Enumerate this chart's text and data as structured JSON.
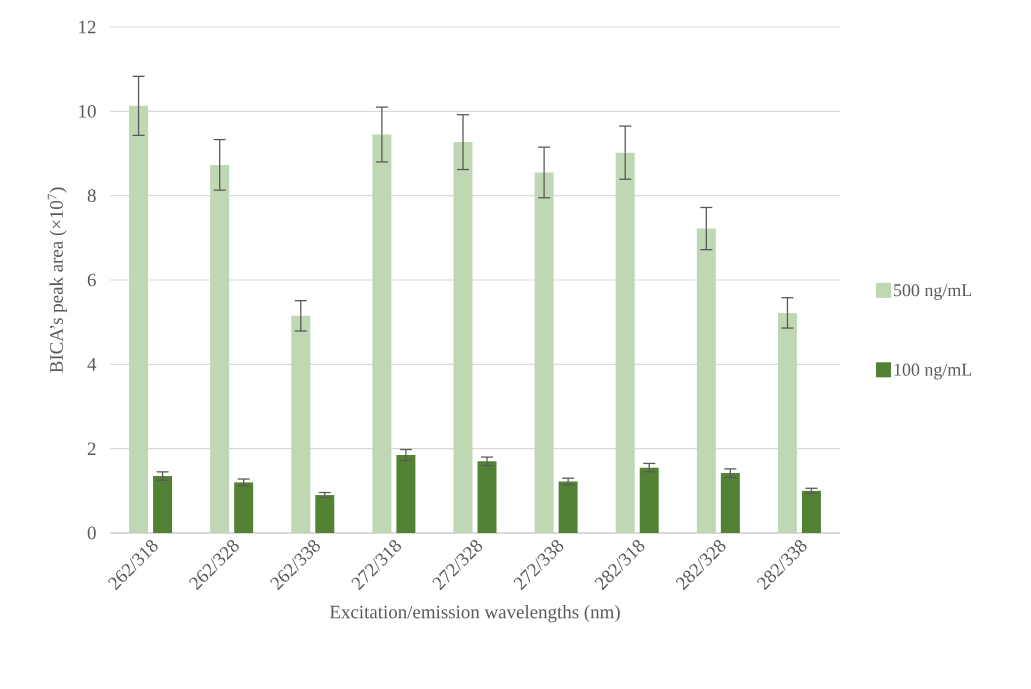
{
  "chart_data": {
    "type": "bar",
    "xlabel": "Excitation/emission wavelengths (nm)",
    "ylabel": "BICA’s peak area (×10$^{7}$)",
    "categories": [
      "262/318",
      "262/328",
      "262/338",
      "272/318",
      "272/328",
      "272/338",
      "282/318",
      "282/328",
      "282/338"
    ],
    "series": [
      {
        "name": "500 ng/mL",
        "color": "#bfd7b3",
        "values": [
          10.13,
          8.73,
          5.15,
          9.45,
          9.27,
          8.55,
          9.02,
          7.22,
          5.22
        ],
        "errors": [
          0.7,
          0.6,
          0.36,
          0.65,
          0.65,
          0.6,
          0.63,
          0.5,
          0.36
        ]
      },
      {
        "name": "100 ng/mL",
        "color": "#548235",
        "values": [
          1.35,
          1.2,
          0.9,
          1.85,
          1.7,
          1.22,
          1.55,
          1.42,
          1.0
        ],
        "errors": [
          0.1,
          0.08,
          0.06,
          0.13,
          0.1,
          0.08,
          0.1,
          0.1,
          0.06
        ]
      }
    ],
    "ylim": [
      0,
      12
    ],
    "yticks": [
      0,
      2,
      4,
      6,
      8,
      10,
      12
    ],
    "grid": "y",
    "legend": "right"
  }
}
